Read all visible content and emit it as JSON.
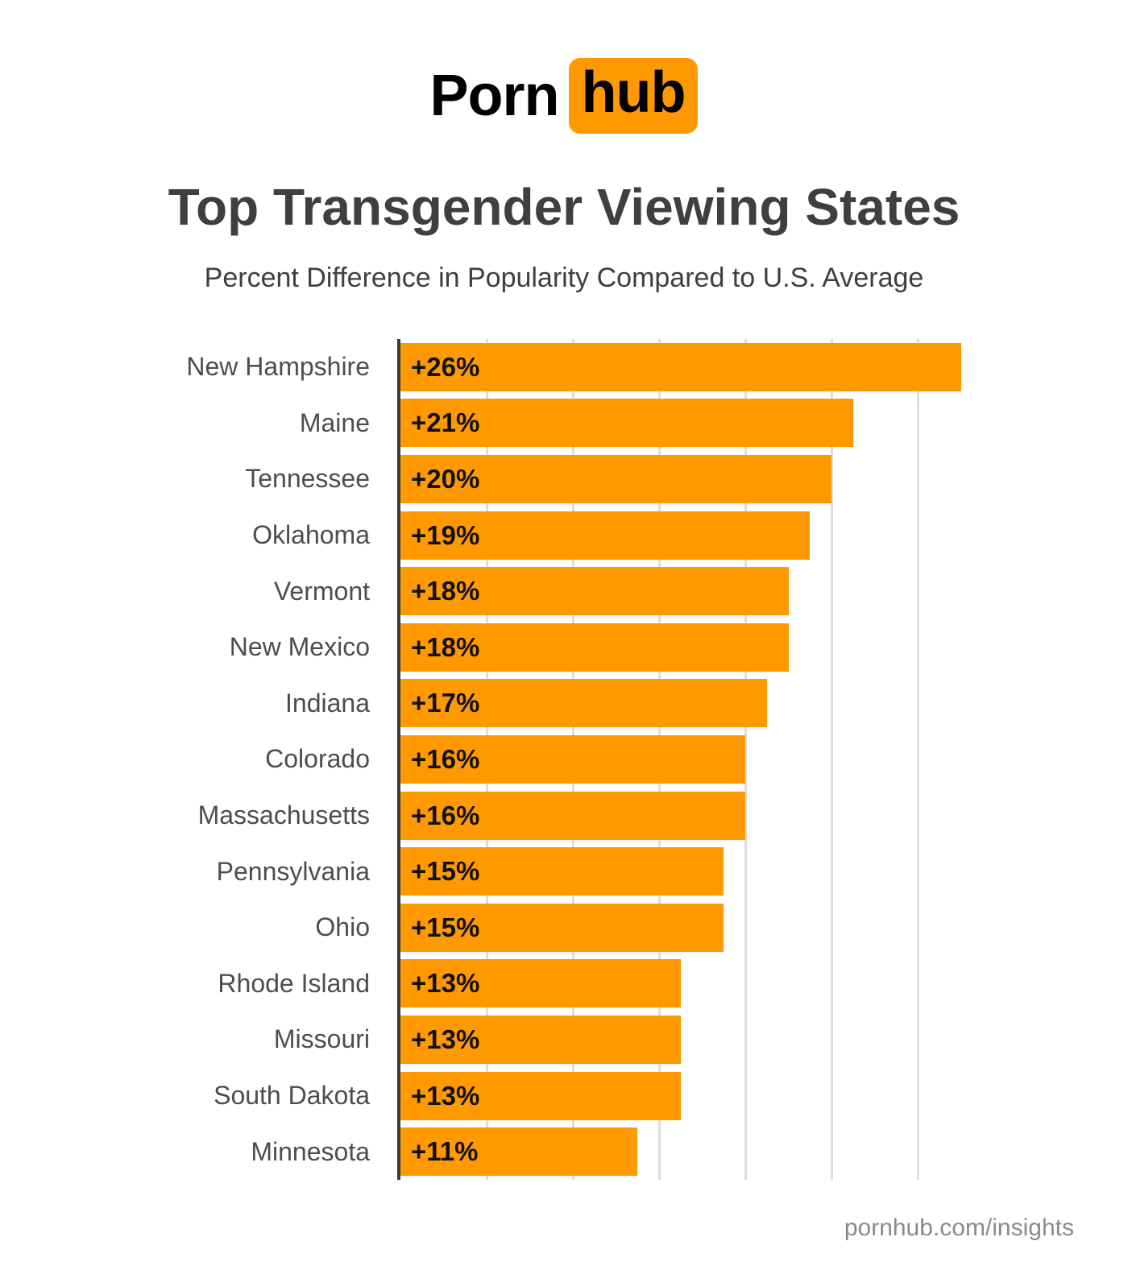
{
  "logo": {
    "part1": "Porn",
    "part2": "hub"
  },
  "header": {
    "title": "Top Transgender Viewing States",
    "subtitle": "Percent Difference in Popularity Compared to U.S. Average"
  },
  "footer": {
    "link": "pornhub.com/insights"
  },
  "colors": {
    "accent_orange": "#FF9900",
    "title_gray": "#3F3F3F",
    "label_gray": "#4D4D4D",
    "value_black": "#111111",
    "gridline_gray": "#DDDDDD",
    "axis_dark": "#3A3A3A",
    "footer_gray": "#8A8A8A"
  },
  "chart_data": {
    "type": "bar",
    "orientation": "horizontal",
    "title": "Top Transgender Viewing States",
    "subtitle": "Percent Difference in Popularity Compared to U.S. Average",
    "categories": [
      "New Hampshire",
      "Maine",
      "Tennessee",
      "Oklahoma",
      "Vermont",
      "New Mexico",
      "Indiana",
      "Colorado",
      "Massachusetts",
      "Pennsylvania",
      "Ohio",
      "Rhode Island",
      "Missouri",
      "South Dakota",
      "Minnesota"
    ],
    "values": [
      26,
      21,
      20,
      19,
      18,
      18,
      17,
      16,
      16,
      15,
      15,
      13,
      13,
      13,
      11
    ],
    "value_labels": [
      "+26%",
      "+21%",
      "+20%",
      "+19%",
      "+18%",
      "+18%",
      "+17%",
      "+16%",
      "+16%",
      "+15%",
      "+15%",
      "+13%",
      "+13%",
      "+13%",
      "+11%"
    ],
    "xlabel": "",
    "ylabel": "",
    "xlim": [
      0,
      32
    ],
    "gridline_interval_pct": 4,
    "gridline_count": 6,
    "grid": true,
    "legend": false
  }
}
